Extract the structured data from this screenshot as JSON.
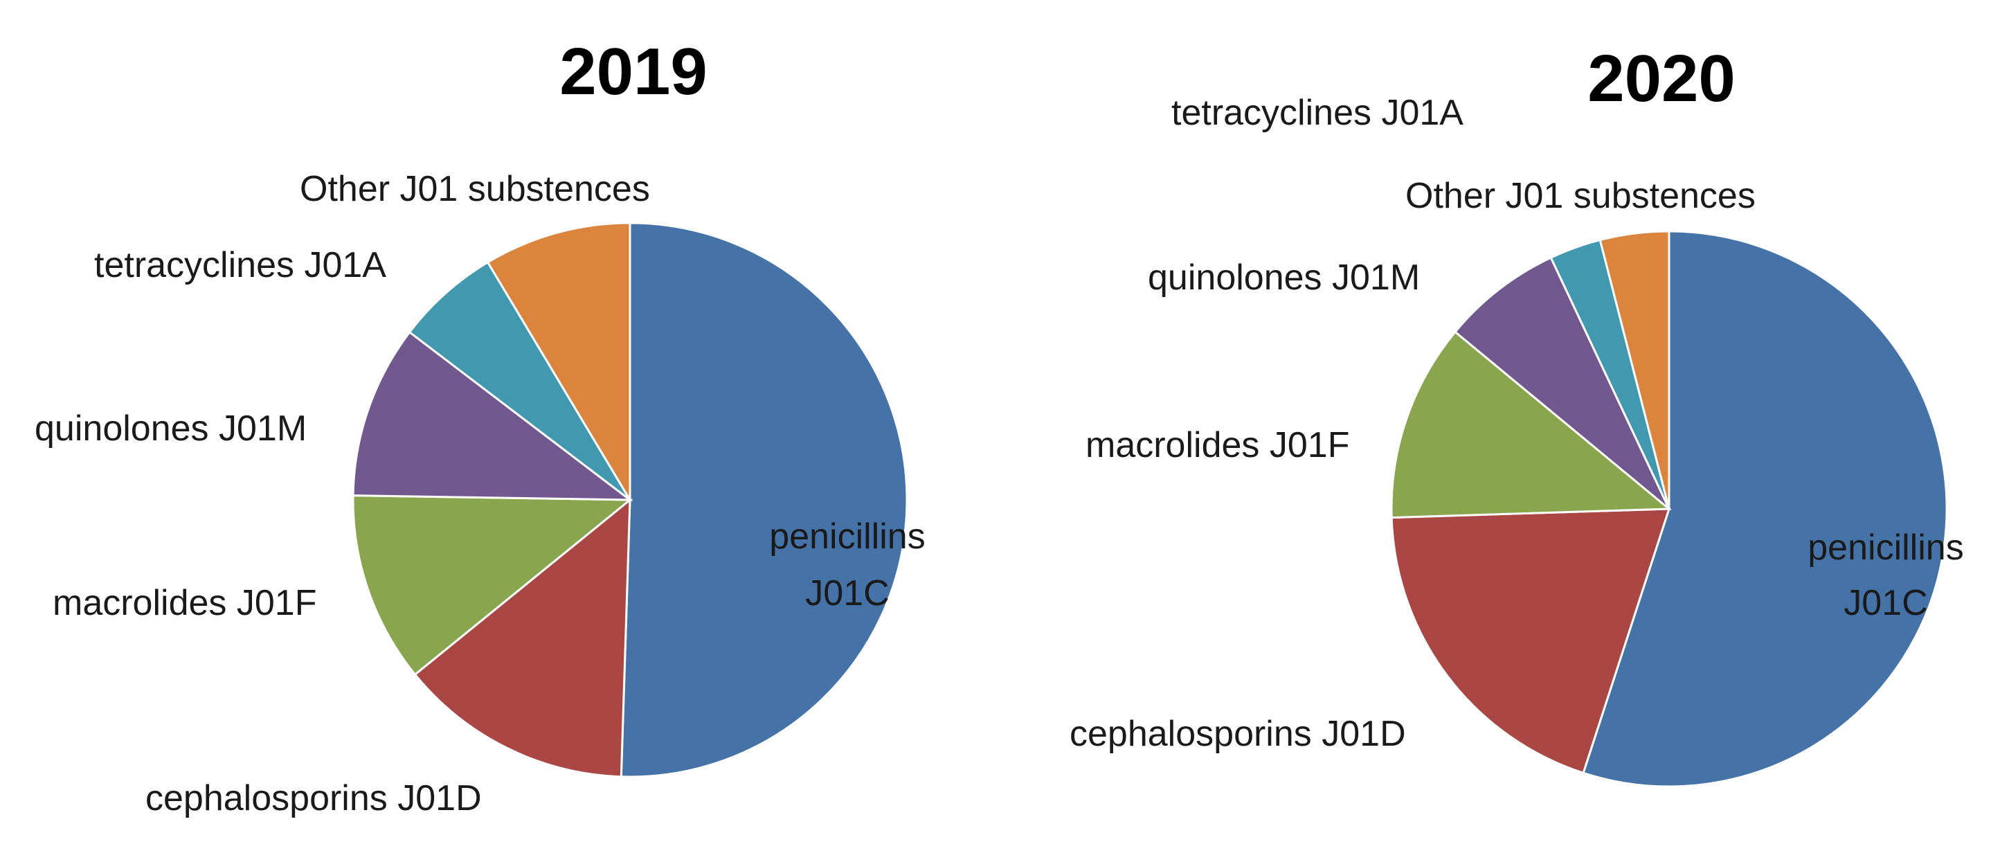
{
  "chart_data": [
    {
      "type": "pie",
      "title": "2019",
      "categories": [
        "penicillins J01C",
        "cephalosporins J01D",
        "macrolides J01F",
        "quinolones J01M",
        "tetracyclines J01A",
        "Other J01 substences"
      ],
      "values": [
        50,
        13.5,
        11,
        10,
        6,
        8.5
      ],
      "colors": [
        "#4572A7",
        "#AA4643",
        "#89A54E",
        "#71588F",
        "#4198AF",
        "#DB843D"
      ],
      "label_lines": [
        [
          "penicillins",
          "J01C"
        ],
        [
          "cephalosporins J01D"
        ],
        [
          "macrolides J01F"
        ],
        [
          "quinolones J01M"
        ],
        [
          "tetracyclines J01A"
        ],
        [
          "Other J01 substences"
        ]
      ]
    },
    {
      "type": "pie",
      "title": "2020",
      "categories": [
        "penicillins J01C",
        "cephalosporins J01D",
        "macrolides J01F",
        "quinolones J01M",
        "tetracyclines J01A",
        "Other J01 substences"
      ],
      "values": [
        55,
        19.5,
        11.5,
        7,
        3,
        4
      ],
      "colors": [
        "#4572A7",
        "#AA4643",
        "#89A54E",
        "#71588F",
        "#4198AF",
        "#DB843D"
      ],
      "label_lines": [
        [
          "penicillins",
          "J01C"
        ],
        [
          "cephalosporins J01D"
        ],
        [
          "macrolides J01F"
        ],
        [
          "quinolones J01M"
        ],
        [
          "tetracyclines J01A"
        ],
        [
          "Other J01 substences"
        ]
      ]
    }
  ]
}
